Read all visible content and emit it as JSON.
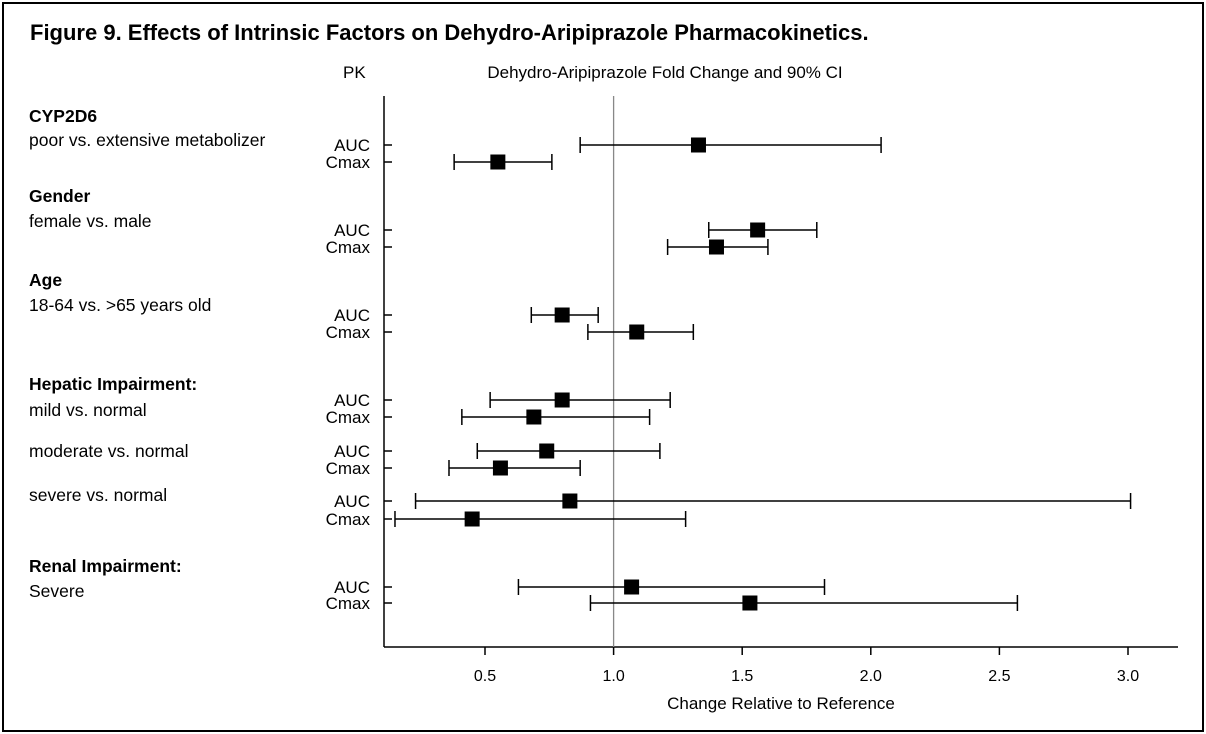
{
  "chart_data": {
    "type": "forest",
    "title": "Figure 9. Effects of Intrinsic Factors on Dehydro-Aripiprazole Pharmacokinetics.",
    "column_headers": {
      "pk": "PK",
      "plot": "Dehydro-Aripiprazole Fold Change and 90% CI"
    },
    "xlabel": "Change Relative to Reference",
    "xlim": [
      0.1,
      3.2
    ],
    "xticks": [
      0.5,
      1.0,
      1.5,
      2.0,
      2.5,
      3.0
    ],
    "xtick_labels": [
      "0.5",
      "1.0",
      "1.5",
      "2.0",
      "2.5",
      "3.0"
    ],
    "reference_line": 1.0,
    "groups": [
      {
        "title": "CYP2D6",
        "subgroups": [
          {
            "label": "poor vs. extensive metabolizer",
            "rows": [
              {
                "pk": "AUC",
                "estimate": 1.33,
                "lower": 0.87,
                "upper": 2.04
              },
              {
                "pk": "Cmax",
                "estimate": 0.55,
                "lower": 0.38,
                "upper": 0.76
              }
            ]
          }
        ]
      },
      {
        "title": "Gender",
        "subgroups": [
          {
            "label": "female vs. male",
            "rows": [
              {
                "pk": "AUC",
                "estimate": 1.56,
                "lower": 1.37,
                "upper": 1.79
              },
              {
                "pk": "Cmax",
                "estimate": 1.4,
                "lower": 1.21,
                "upper": 1.6
              }
            ]
          }
        ]
      },
      {
        "title": "Age",
        "subgroups": [
          {
            "label": "18-64 vs. >65 years old",
            "rows": [
              {
                "pk": "AUC",
                "estimate": 0.8,
                "lower": 0.68,
                "upper": 0.94
              },
              {
                "pk": "Cmax",
                "estimate": 1.09,
                "lower": 0.9,
                "upper": 1.31
              }
            ]
          }
        ]
      },
      {
        "title": "Hepatic Impairment:",
        "subgroups": [
          {
            "label": "mild vs. normal",
            "rows": [
              {
                "pk": "AUC",
                "estimate": 0.8,
                "lower": 0.52,
                "upper": 1.22
              },
              {
                "pk": "Cmax",
                "estimate": 0.69,
                "lower": 0.41,
                "upper": 1.14
              }
            ]
          },
          {
            "label": "moderate vs. normal",
            "rows": [
              {
                "pk": "AUC",
                "estimate": 0.74,
                "lower": 0.47,
                "upper": 1.18
              },
              {
                "pk": "Cmax",
                "estimate": 0.56,
                "lower": 0.36,
                "upper": 0.87
              }
            ]
          },
          {
            "label": "severe vs. normal",
            "rows": [
              {
                "pk": "AUC",
                "estimate": 0.83,
                "lower": 0.23,
                "upper": 3.01
              },
              {
                "pk": "Cmax",
                "estimate": 0.45,
                "lower": 0.15,
                "upper": 1.28
              }
            ]
          }
        ]
      },
      {
        "title": "Renal Impairment:",
        "subgroups": [
          {
            "label": "Severe",
            "rows": [
              {
                "pk": "AUC",
                "estimate": 1.07,
                "lower": 0.63,
                "upper": 1.82
              },
              {
                "pk": "Cmax",
                "estimate": 1.53,
                "lower": 0.91,
                "upper": 2.57
              }
            ]
          }
        ]
      }
    ]
  }
}
